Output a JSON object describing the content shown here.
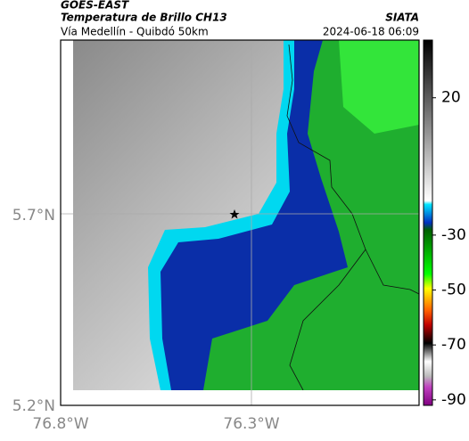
{
  "header": {
    "title": "GOES-EAST",
    "subtitle": "Temperatura de Brillo CH13",
    "route": "Vía Medellín - Quibdó 50km",
    "source": "SIATA",
    "timestamp": "2024-06-18 06:09"
  },
  "map": {
    "lat_labels": [
      "5.7°N",
      "5.2°N"
    ],
    "lon_labels": [
      "76.8°W",
      "76.3°W"
    ]
  },
  "colorbar": {
    "lim": [
      -92,
      41
    ],
    "ticks": [
      20,
      -30,
      -50,
      -70,
      -90
    ]
  }
}
